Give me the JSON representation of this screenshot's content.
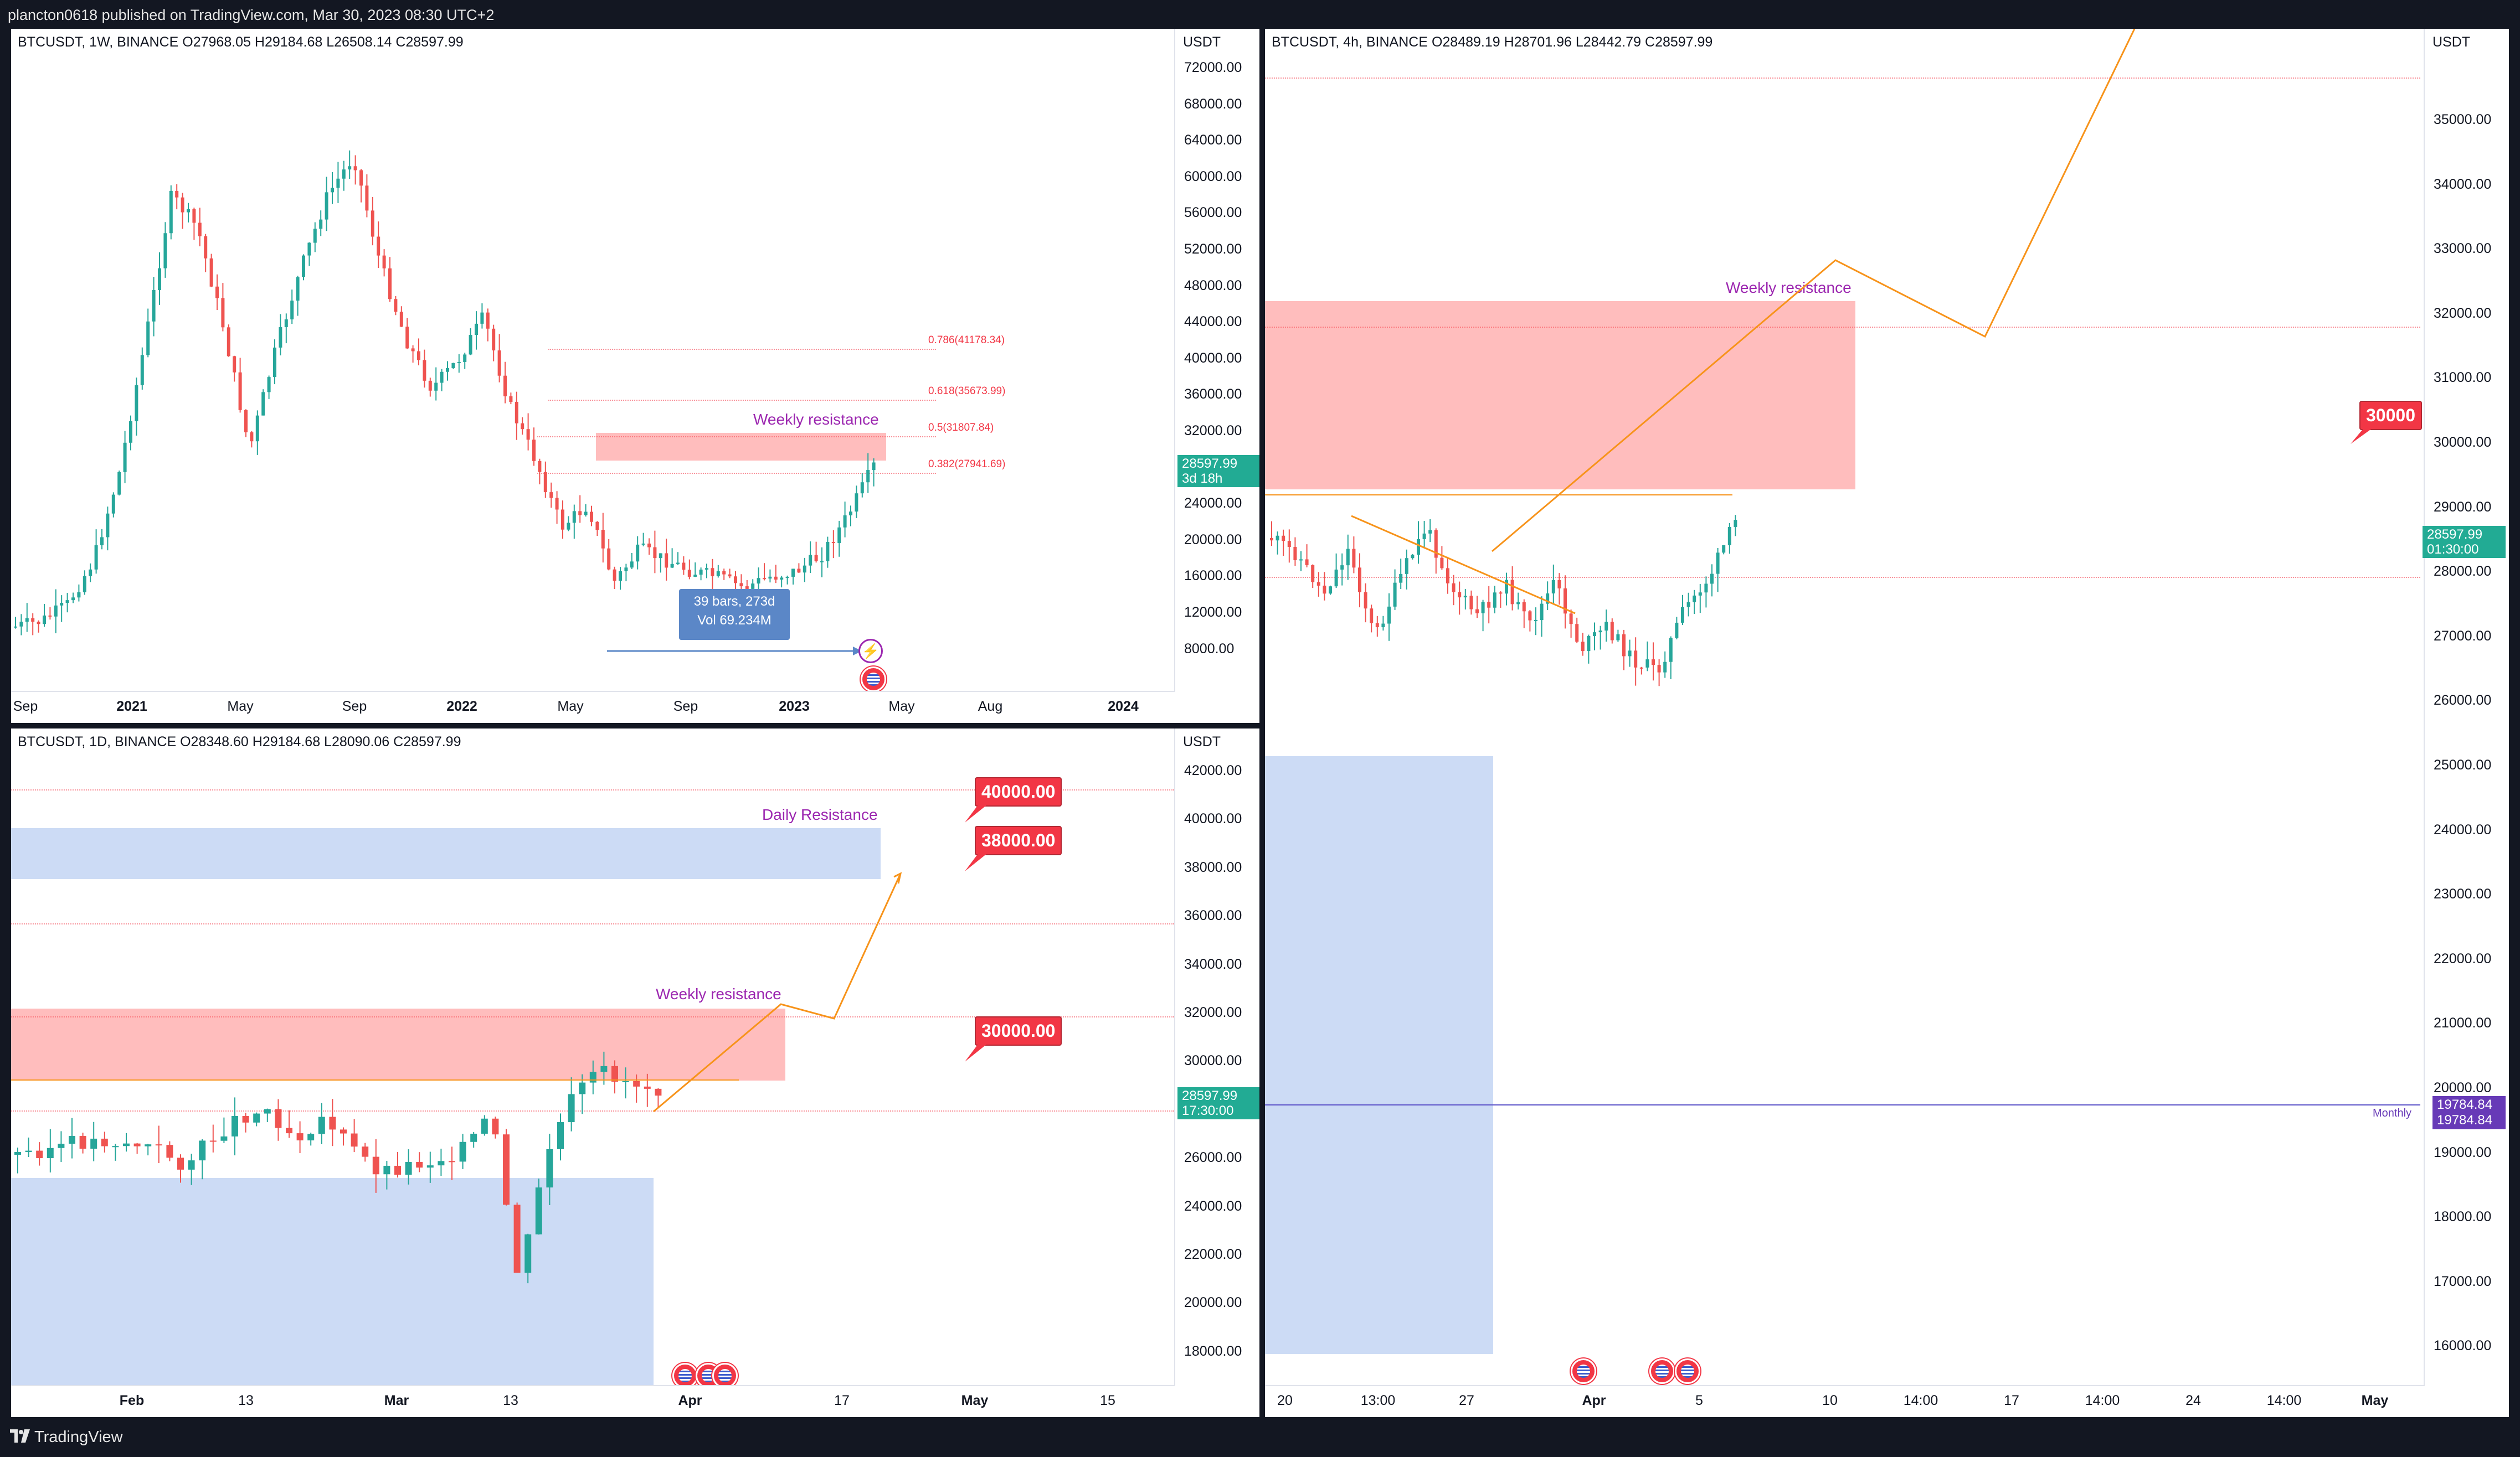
{
  "header": {
    "published": "plancton0618 published on TradingView.com, Mar 30, 2023 08:30 UTC+2"
  },
  "footer": {
    "brand": "TradingView"
  },
  "weekly": {
    "title": "BTCUSDT, 1W, BINANCE  O27968.05  H29184.68  L26508.14  C28597.99",
    "unit": "USDT",
    "yticks": [
      "72000.00",
      "68000.00",
      "64000.00",
      "60000.00",
      "56000.00",
      "52000.00",
      "48000.00",
      "44000.00",
      "40000.00",
      "36000.00",
      "32000.00",
      "28000.00",
      "24000.00",
      "20000.00",
      "16000.00",
      "12000.00",
      "8000.00"
    ],
    "xticks": [
      {
        "label": "Sep",
        "bold": false
      },
      {
        "label": "2021",
        "bold": true
      },
      {
        "label": "May",
        "bold": false
      },
      {
        "label": "Sep",
        "bold": false
      },
      {
        "label": "2022",
        "bold": true
      },
      {
        "label": "May",
        "bold": false
      },
      {
        "label": "Sep",
        "bold": false
      },
      {
        "label": "2023",
        "bold": true
      },
      {
        "label": "May",
        "bold": false
      },
      {
        "label": "Aug",
        "bold": false
      },
      {
        "label": "2024",
        "bold": true
      }
    ],
    "fibs": [
      "0.786(41178.34)",
      "0.618(35673.99)",
      "0.5(31807.84)",
      "0.382(27941.69)"
    ],
    "annotation": "Weekly resistance",
    "price_tag": {
      "price": "28597.99",
      "countdown": "3d 18h"
    },
    "measure": {
      "line1": "39 bars, 273d",
      "line2": "Vol 69.234M"
    }
  },
  "daily": {
    "title": "BTCUSDT, 1D, BINANCE  O28348.60  H29184.68  L28090.06  C28597.99",
    "unit": "USDT",
    "yticks": [
      "42000.00",
      "40000.00",
      "38000.00",
      "36000.00",
      "34000.00",
      "32000.00",
      "30000.00",
      "28000.00",
      "26000.00",
      "24000.00",
      "22000.00",
      "20000.00",
      "18000.00"
    ],
    "xticks": [
      {
        "label": "Feb",
        "bold": true
      },
      {
        "label": "13",
        "bold": false
      },
      {
        "label": "Mar",
        "bold": true
      },
      {
        "label": "13",
        "bold": false
      },
      {
        "label": "Apr",
        "bold": true
      },
      {
        "label": "17",
        "bold": false
      },
      {
        "label": "May",
        "bold": true
      },
      {
        "label": "15",
        "bold": false
      }
    ],
    "annotations": {
      "daily": "Daily Resistance",
      "weekly": "Weekly resistance"
    },
    "callouts": [
      "40000.00",
      "38000.00",
      "30000.00"
    ],
    "price_tag": {
      "price": "28597.99",
      "countdown": "17:30:00"
    }
  },
  "h4": {
    "title": "BTCUSDT, 4h, BINANCE  O28489.19  H28701.96  L28442.79  C28597.99",
    "unit": "USDT",
    "yticks": [
      "35000.00",
      "34000.00",
      "33000.00",
      "32000.00",
      "31000.00",
      "30000.00",
      "29000.00",
      "28000.00",
      "27000.00",
      "26000.00",
      "25000.00",
      "24000.00",
      "23000.00",
      "22000.00",
      "21000.00",
      "20000.00",
      "19000.00",
      "18000.00",
      "17000.00",
      "16000.00"
    ],
    "xticks": [
      {
        "label": "20",
        "bold": false
      },
      {
        "label": "13:00",
        "bold": false
      },
      {
        "label": "27",
        "bold": false
      },
      {
        "label": "Apr",
        "bold": true
      },
      {
        "label": "5",
        "bold": false
      },
      {
        "label": "10",
        "bold": false
      },
      {
        "label": "14:00",
        "bold": false
      },
      {
        "label": "17",
        "bold": false
      },
      {
        "label": "14:00",
        "bold": false
      },
      {
        "label": "24",
        "bold": false
      },
      {
        "label": "14:00",
        "bold": false
      },
      {
        "label": "May",
        "bold": true
      }
    ],
    "annotation": "Weekly resistance",
    "callout": "30000",
    "price_tag": {
      "price": "28597.99",
      "countdown": "01:30:00"
    },
    "monthly": {
      "label": "Monthly",
      "value1": "19784.84",
      "value2": "19784.84"
    }
  },
  "colors": {
    "up": "#26a69a",
    "down": "#ef5350",
    "accent": "#f7931a",
    "purple": "#9c27b0",
    "bg": "#131722"
  }
}
